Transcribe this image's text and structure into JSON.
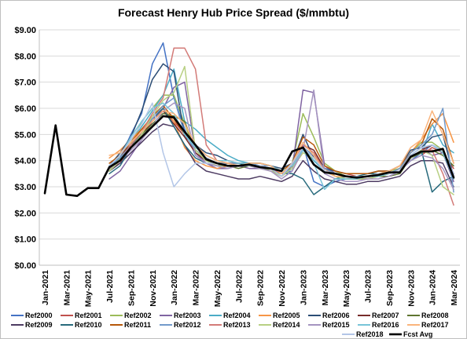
{
  "chart_data": {
    "type": "line",
    "title": "Forecast Henry Hub Price Spread ($/mmbtu)",
    "x": [
      "Jan-2021",
      "Feb-2021",
      "Mar-2021",
      "Apr-2021",
      "May-2021",
      "Jun-2021",
      "Jul-2021",
      "Aug-2021",
      "Sep-2021",
      "Oct-2021",
      "Nov-2021",
      "Dec-2021",
      "Jan-2022",
      "Feb-2022",
      "Mar-2022",
      "Apr-2022",
      "May-2022",
      "Jun-2022",
      "Jul-2022",
      "Aug-2022",
      "Sep-2022",
      "Oct-2022",
      "Nov-2022",
      "Dec-2022",
      "Jan-2023",
      "Feb-2023",
      "Mar-2023",
      "Apr-2023",
      "May-2023",
      "Jun-2023",
      "Jul-2023",
      "Aug-2023",
      "Sep-2023",
      "Oct-2023",
      "Nov-2023",
      "Dec-2023",
      "Jan-2024",
      "Feb-2024",
      "Mar-2024"
    ],
    "x_tick_labels": [
      "Jan-2021",
      "Mar-2021",
      "May-2021",
      "Jul-2021",
      "Sep-2021",
      "Nov-2021",
      "Jan-2022",
      "Mar-2022",
      "May-2022",
      "Jul-2022",
      "Sep-2022",
      "Nov-2022",
      "Jan-2023",
      "Mar-2023",
      "May-2023",
      "Jul-2023",
      "Sep-2023",
      "Nov-2023",
      "Jan-2024",
      "Mar-2024"
    ],
    "y_tick_labels": [
      "$0.00",
      "$1.00",
      "$2.00",
      "$3.00",
      "$4.00",
      "$5.00",
      "$6.00",
      "$7.00",
      "$8.00",
      "$9.00"
    ],
    "ylim": [
      0,
      9
    ],
    "grid": true,
    "legend_position": "bottom",
    "series": [
      {
        "name": "Ref2000",
        "color": "#4472c4",
        "width": 1.5,
        "values": [
          null,
          null,
          null,
          null,
          null,
          null,
          3.6,
          4.1,
          5.0,
          5.8,
          7.7,
          8.5,
          6.4,
          5.2,
          4.2,
          3.9,
          3.8,
          3.7,
          3.8,
          3.9,
          3.8,
          3.7,
          3.5,
          3.6,
          4.6,
          3.2,
          3.0,
          3.2,
          3.3,
          3.3,
          3.3,
          3.4,
          3.5,
          3.6,
          4.0,
          4.3,
          4.6,
          4.4,
          3.5
        ]
      },
      {
        "name": "Ref2001",
        "color": "#c0504d",
        "width": 1.5,
        "values": [
          null,
          null,
          null,
          null,
          null,
          null,
          3.7,
          3.9,
          4.5,
          5.0,
          5.6,
          5.9,
          5.5,
          5.0,
          4.6,
          4.2,
          4.0,
          3.9,
          3.9,
          3.9,
          3.8,
          3.8,
          3.6,
          3.8,
          4.4,
          4.2,
          3.7,
          3.6,
          3.5,
          3.4,
          3.4,
          3.5,
          3.5,
          3.7,
          4.0,
          4.2,
          4.5,
          4.3,
          3.7
        ]
      },
      {
        "name": "Ref2002",
        "color": "#9bbb59",
        "width": 1.5,
        "values": [
          null,
          null,
          null,
          null,
          null,
          null,
          3.6,
          4.1,
          4.6,
          5.5,
          6.0,
          6.5,
          6.5,
          5.4,
          4.3,
          4.0,
          3.9,
          3.9,
          3.8,
          3.8,
          3.8,
          3.6,
          3.5,
          3.9,
          5.8,
          4.9,
          3.9,
          3.6,
          3.4,
          3.4,
          3.4,
          3.5,
          3.6,
          3.7,
          4.3,
          4.7,
          4.7,
          4.4,
          3.3
        ]
      },
      {
        "name": "Ref2003",
        "color": "#8064a2",
        "width": 1.5,
        "values": [
          null,
          null,
          null,
          null,
          null,
          null,
          3.3,
          3.6,
          4.2,
          4.8,
          5.5,
          6.0,
          6.8,
          7.0,
          4.3,
          3.9,
          3.7,
          3.7,
          3.8,
          3.7,
          3.7,
          3.6,
          3.4,
          3.7,
          6.7,
          6.6,
          3.8,
          3.5,
          3.4,
          3.3,
          3.3,
          3.4,
          3.4,
          3.6,
          4.2,
          4.5,
          4.2,
          4.3,
          3.2
        ]
      },
      {
        "name": "Ref2004",
        "color": "#4bacc6",
        "width": 1.5,
        "values": [
          null,
          null,
          null,
          null,
          null,
          null,
          3.7,
          4.2,
          4.7,
          5.3,
          5.9,
          6.5,
          7.5,
          5.5,
          5.2,
          4.8,
          4.5,
          4.2,
          4.0,
          3.9,
          3.8,
          3.7,
          3.6,
          3.8,
          4.5,
          4.0,
          3.6,
          3.5,
          3.4,
          3.4,
          3.4,
          3.5,
          3.5,
          3.6,
          4.0,
          4.2,
          5.4,
          4.6,
          4.3
        ]
      },
      {
        "name": "Ref2005",
        "color": "#f79646",
        "width": 1.5,
        "values": [
          null,
          null,
          null,
          null,
          null,
          null,
          4.1,
          4.4,
          4.8,
          5.2,
          5.6,
          6.0,
          5.5,
          4.5,
          4.0,
          3.8,
          3.7,
          3.8,
          3.8,
          3.9,
          3.9,
          3.8,
          3.6,
          3.9,
          4.6,
          4.3,
          3.7,
          3.4,
          3.3,
          3.3,
          3.3,
          3.4,
          3.5,
          3.6,
          4.3,
          4.8,
          5.4,
          5.8,
          4.7
        ]
      },
      {
        "name": "Ref2006",
        "color": "#2c4d75",
        "width": 1.5,
        "values": [
          null,
          null,
          null,
          null,
          null,
          null,
          3.8,
          4.3,
          4.9,
          5.9,
          7.1,
          7.7,
          7.4,
          4.9,
          4.6,
          4.3,
          4.2,
          4.0,
          3.9,
          3.9,
          3.9,
          3.8,
          3.7,
          3.9,
          5.0,
          4.1,
          3.7,
          3.6,
          3.5,
          3.5,
          3.5,
          3.6,
          3.6,
          3.8,
          4.4,
          4.5,
          4.9,
          5.0,
          3.4
        ]
      },
      {
        "name": "Ref2007",
        "color": "#772c2a",
        "width": 1.5,
        "values": [
          null,
          null,
          null,
          null,
          null,
          null,
          3.8,
          4.2,
          4.6,
          5.0,
          5.5,
          5.9,
          5.4,
          4.9,
          4.3,
          4.0,
          3.9,
          3.8,
          3.8,
          3.8,
          3.8,
          3.7,
          3.6,
          3.8,
          4.6,
          4.4,
          3.7,
          3.5,
          3.4,
          3.4,
          3.4,
          3.5,
          3.5,
          3.6,
          4.1,
          4.4,
          4.6,
          4.3,
          3.5
        ]
      },
      {
        "name": "Ref2008",
        "color": "#5f7530",
        "width": 1.5,
        "values": [
          null,
          null,
          null,
          null,
          null,
          null,
          3.8,
          4.1,
          4.5,
          5.0,
          5.4,
          5.8,
          5.7,
          5.5,
          4.4,
          4.0,
          3.8,
          3.8,
          3.7,
          3.8,
          3.7,
          3.7,
          3.4,
          3.8,
          4.5,
          4.2,
          3.6,
          3.4,
          3.3,
          3.3,
          3.3,
          3.4,
          3.4,
          3.5,
          4.1,
          4.3,
          4.4,
          4.2,
          3.8
        ]
      },
      {
        "name": "Ref2009",
        "color": "#4d3b62",
        "width": 1.5,
        "values": [
          null,
          null,
          null,
          null,
          null,
          null,
          3.6,
          3.9,
          4.3,
          4.7,
          5.1,
          5.4,
          5.3,
          4.6,
          3.9,
          3.6,
          3.5,
          3.4,
          3.3,
          3.3,
          3.4,
          3.3,
          3.2,
          3.4,
          4.0,
          3.6,
          3.3,
          3.2,
          3.1,
          3.1,
          3.2,
          3.2,
          3.3,
          3.4,
          3.8,
          4.0,
          4.0,
          3.9,
          3.0
        ]
      },
      {
        "name": "Ref2010",
        "color": "#276a7c",
        "width": 1.5,
        "values": [
          null,
          null,
          null,
          null,
          null,
          null,
          3.5,
          3.8,
          4.5,
          5.1,
          5.6,
          6.0,
          5.3,
          4.6,
          4.1,
          3.9,
          3.8,
          3.9,
          3.9,
          3.8,
          3.8,
          3.8,
          3.5,
          3.5,
          3.3,
          2.7,
          3.0,
          3.3,
          3.4,
          3.4,
          3.5,
          3.5,
          3.5,
          3.6,
          4.1,
          4.4,
          2.8,
          3.2,
          3.4
        ]
      },
      {
        "name": "Ref2011",
        "color": "#b65708",
        "width": 1.5,
        "values": [
          null,
          null,
          null,
          null,
          null,
          null,
          3.9,
          4.2,
          4.7,
          5.2,
          5.7,
          6.1,
          5.6,
          5.0,
          4.4,
          4.1,
          3.9,
          3.9,
          3.9,
          3.9,
          3.9,
          3.8,
          3.6,
          3.9,
          4.9,
          4.6,
          3.8,
          3.6,
          3.5,
          3.5,
          3.5,
          3.6,
          3.6,
          3.8,
          4.3,
          4.6,
          5.6,
          5.2,
          3.9
        ]
      },
      {
        "name": "Ref2012",
        "color": "#729aca",
        "width": 1.5,
        "values": [
          null,
          null,
          null,
          null,
          null,
          null,
          3.8,
          4.1,
          4.6,
          5.1,
          5.6,
          6.1,
          6.4,
          5.0,
          4.4,
          4.1,
          3.9,
          3.9,
          3.9,
          3.9,
          3.8,
          3.8,
          3.5,
          3.7,
          4.5,
          4.2,
          3.7,
          3.5,
          3.4,
          3.4,
          3.4,
          3.5,
          3.5,
          3.7,
          4.3,
          4.6,
          5.0,
          6.0,
          2.8
        ]
      },
      {
        "name": "Ref2013",
        "color": "#d37b78",
        "width": 1.5,
        "values": [
          null,
          null,
          null,
          null,
          null,
          null,
          3.7,
          4.0,
          4.6,
          5.1,
          5.8,
          6.4,
          8.3,
          8.3,
          7.5,
          4.6,
          4.0,
          3.9,
          3.8,
          3.8,
          3.8,
          3.7,
          3.5,
          3.8,
          4.6,
          4.3,
          3.6,
          3.5,
          3.4,
          3.4,
          3.4,
          3.5,
          3.5,
          3.6,
          4.1,
          4.4,
          4.4,
          3.5,
          2.3
        ]
      },
      {
        "name": "Ref2014",
        "color": "#b8d083",
        "width": 1.5,
        "values": [
          null,
          null,
          null,
          null,
          null,
          null,
          3.6,
          4.0,
          4.5,
          5.0,
          5.7,
          6.3,
          6.6,
          7.6,
          4.4,
          4.0,
          3.8,
          3.8,
          3.8,
          3.8,
          3.7,
          3.6,
          3.4,
          3.7,
          4.3,
          4.1,
          3.6,
          3.4,
          3.3,
          3.3,
          3.3,
          3.4,
          3.5,
          3.6,
          4.1,
          4.4,
          4.2,
          3.0,
          2.7
        ]
      },
      {
        "name": "Ref2015",
        "color": "#a594c0",
        "width": 1.5,
        "values": [
          null,
          null,
          null,
          null,
          null,
          null,
          3.7,
          4.0,
          4.4,
          4.8,
          5.3,
          5.9,
          6.2,
          6.0,
          4.2,
          3.9,
          3.8,
          3.7,
          3.8,
          3.8,
          3.7,
          3.6,
          3.3,
          3.6,
          4.4,
          6.7,
          3.5,
          3.3,
          3.2,
          3.2,
          3.3,
          3.3,
          3.4,
          3.6,
          4.0,
          4.2,
          4.1,
          3.7,
          2.9
        ]
      },
      {
        "name": "Ref2016",
        "color": "#78c4d8",
        "width": 1.5,
        "values": [
          null,
          null,
          null,
          null,
          null,
          null,
          3.8,
          4.2,
          4.9,
          5.5,
          6.0,
          6.2,
          5.8,
          5.0,
          4.5,
          4.2,
          4.0,
          4.0,
          3.9,
          3.9,
          3.9,
          3.8,
          3.6,
          3.8,
          4.4,
          3.9,
          2.9,
          3.3,
          3.3,
          3.3,
          3.4,
          3.4,
          3.5,
          3.6,
          4.2,
          4.5,
          4.6,
          4.3,
          3.3
        ]
      },
      {
        "name": "Ref2017",
        "color": "#fab47c",
        "width": 1.5,
        "values": [
          null,
          null,
          null,
          null,
          null,
          null,
          4.2,
          4.3,
          4.7,
          5.1,
          5.5,
          5.9,
          5.8,
          5.4,
          4.6,
          4.2,
          4.0,
          3.9,
          3.8,
          3.9,
          3.9,
          3.8,
          3.5,
          3.9,
          4.7,
          4.2,
          3.6,
          3.4,
          3.4,
          3.4,
          3.4,
          3.5,
          3.6,
          3.8,
          4.5,
          4.8,
          5.9,
          5.0,
          3.9
        ]
      },
      {
        "name": "Ref2018",
        "color": "#b3c6e7",
        "width": 1.5,
        "values": [
          null,
          null,
          null,
          null,
          null,
          null,
          3.8,
          4.2,
          4.8,
          5.4,
          6.2,
          4.3,
          3.0,
          3.5,
          3.9,
          3.9,
          3.9,
          3.8,
          3.8,
          3.8,
          3.8,
          3.7,
          3.4,
          3.9,
          4.5,
          4.1,
          3.6,
          3.5,
          3.4,
          3.4,
          3.4,
          3.5,
          3.5,
          3.6,
          4.2,
          4.5,
          4.6,
          4.4,
          3.5
        ]
      },
      {
        "name": "Fcst Avg",
        "color": "#000000",
        "width": 2.6,
        "values": [
          2.75,
          5.35,
          2.7,
          2.65,
          2.95,
          2.95,
          3.75,
          4.0,
          4.5,
          4.9,
          5.3,
          5.7,
          5.65,
          5.1,
          4.6,
          4.05,
          3.9,
          3.8,
          3.8,
          3.85,
          3.75,
          3.7,
          3.6,
          4.35,
          4.5,
          3.85,
          3.55,
          3.5,
          3.4,
          3.35,
          3.4,
          3.45,
          3.55,
          3.55,
          4.15,
          4.35,
          4.35,
          4.45,
          3.35
        ]
      }
    ]
  }
}
